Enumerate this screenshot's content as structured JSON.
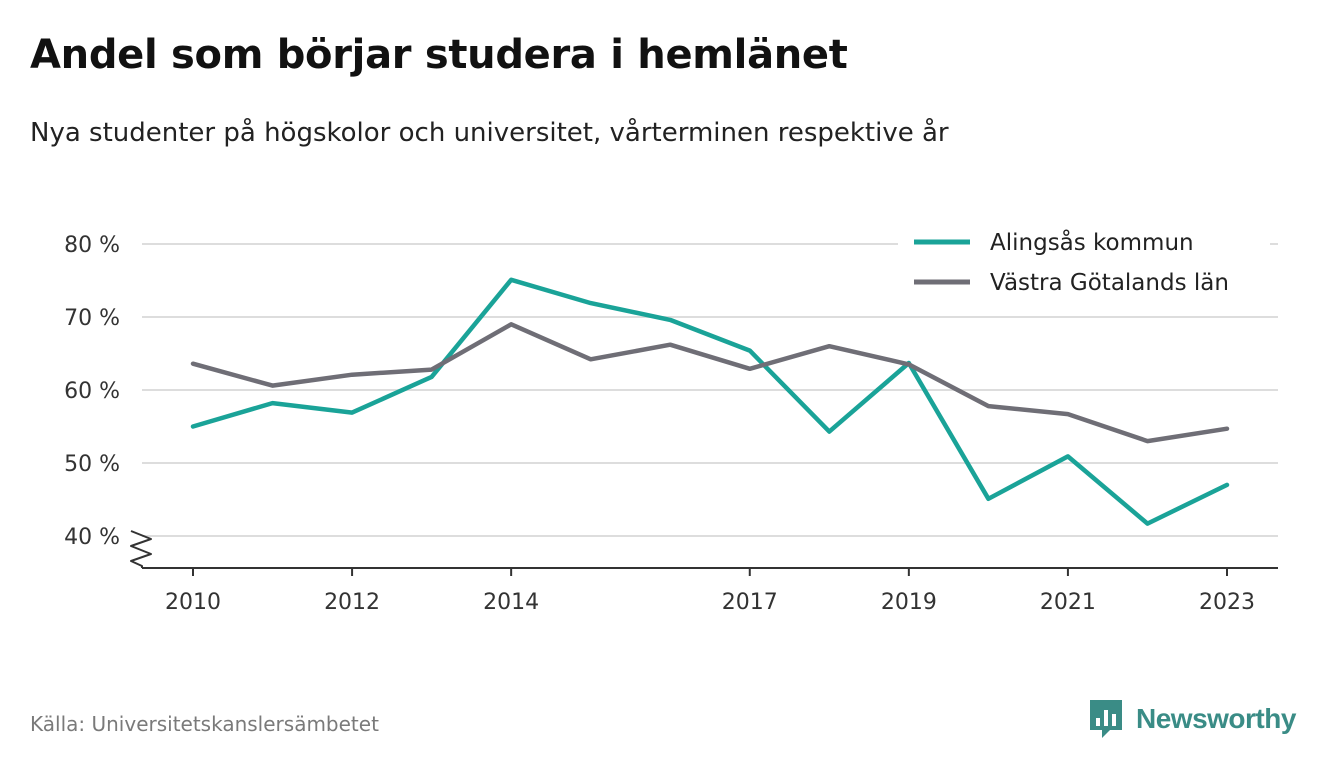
{
  "title": "Andel som börjar studera i hemlänet",
  "subtitle": "Nya studenter på högskolor och universitet, vårterminen respektive år",
  "source": "Källa: Universitetskanslersämbetet",
  "brand": "Newsworthy",
  "colors": {
    "series1": "#1aa398",
    "series2": "#6f6e76",
    "grid": "#dddddd",
    "axis": "#333333",
    "brand": "#3a8c86"
  },
  "chart_data": {
    "type": "line",
    "title": "Andel som börjar studera i hemlänet",
    "subtitle": "Nya studenter på högskolor och universitet, vårterminen respektive år",
    "x": [
      2010,
      2011,
      2012,
      2013,
      2014,
      2015,
      2016,
      2017,
      2018,
      2019,
      2020,
      2021,
      2022,
      2023
    ],
    "x_ticks": [
      2010,
      2012,
      2014,
      2017,
      2019,
      2021,
      2023
    ],
    "x_tick_labels": [
      "2010",
      "2012",
      "2014",
      "2017",
      "2019",
      "2021",
      "2023"
    ],
    "y_ticks": [
      40,
      50,
      60,
      70,
      80
    ],
    "y_tick_labels": [
      "40 %",
      "50 %",
      "60 %",
      "70 %",
      "80 %"
    ],
    "ylim": [
      40,
      80
    ],
    "y_axis_break": true,
    "grid": true,
    "legend_position": "top-right",
    "series": [
      {
        "name": "Alingsås kommun",
        "color": "#1aa398",
        "values": [
          55.0,
          58.2,
          56.9,
          61.8,
          75.1,
          71.9,
          69.6,
          65.4,
          54.3,
          63.7,
          45.1,
          50.9,
          41.7,
          47.0
        ]
      },
      {
        "name": "Västra Götalands län",
        "color": "#6f6e76",
        "values": [
          63.6,
          60.6,
          62.1,
          62.8,
          69.0,
          64.2,
          66.2,
          62.9,
          66.0,
          63.5,
          57.8,
          56.7,
          53.0,
          54.7
        ]
      }
    ]
  }
}
